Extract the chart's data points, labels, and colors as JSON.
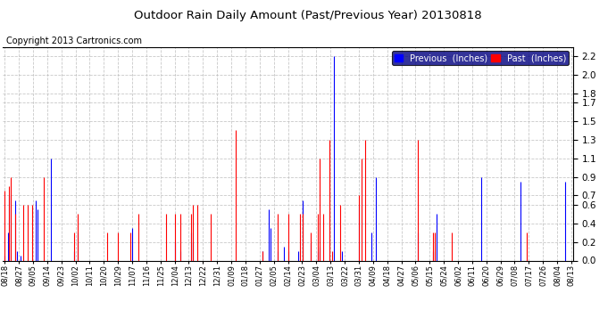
{
  "title": "Outdoor Rain Daily Amount (Past/Previous Year) 20130818",
  "copyright": "Copyright 2013 Cartronics.com",
  "legend_labels": [
    "Previous  (Inches)",
    "Past  (Inches)"
  ],
  "ylim": [
    0,
    2.3
  ],
  "yticks": [
    0.0,
    0.2,
    0.4,
    0.6,
    0.7,
    0.9,
    1.1,
    1.3,
    1.5,
    1.7,
    1.8,
    2.0,
    2.2
  ],
  "bg_color": "#ffffff",
  "grid_color": "#bbbbbb",
  "xtick_labels": [
    "08/18",
    "08/27",
    "09/05",
    "09/14",
    "09/23",
    "10/02",
    "10/11",
    "10/20",
    "10/29",
    "11/07",
    "11/16",
    "11/25",
    "12/04",
    "12/13",
    "12/22",
    "12/31",
    "01/09",
    "01/18",
    "01/27",
    "02/05",
    "02/14",
    "02/23",
    "03/04",
    "03/13",
    "03/22",
    "03/31",
    "04/09",
    "04/18",
    "04/27",
    "05/06",
    "05/15",
    "05/24",
    "06/02",
    "06/11",
    "06/20",
    "06/29",
    "07/08",
    "07/17",
    "07/26",
    "08/04",
    "08/13"
  ],
  "n_days": 366,
  "previous_data": [
    0.05,
    0.0,
    0.3,
    0.7,
    0.0,
    0.0,
    0.0,
    0.65,
    0.1,
    0.0,
    0.05,
    0.0,
    0.0,
    0.0,
    0.0,
    0.0,
    0.0,
    0.0,
    0.0,
    0.0,
    0.65,
    0.55,
    0.0,
    0.0,
    0.0,
    0.0,
    0.0,
    0.0,
    0.0,
    0.0,
    1.1,
    0.0,
    0.0,
    0.0,
    0.0,
    0.0,
    0.0,
    0.0,
    0.0,
    0.0,
    0.0,
    0.0,
    0.0,
    0.0,
    0.0,
    0.1,
    0.0,
    0.3,
    0.0,
    0.0,
    0.0,
    0.0,
    0.0,
    0.0,
    0.0,
    0.0,
    0.0,
    0.0,
    0.0,
    0.0,
    0.0,
    0.0,
    0.0,
    0.0,
    0.0,
    0.0,
    0.0,
    0.0,
    0.0,
    0.0,
    0.0,
    0.0,
    0.0,
    0.0,
    0.0,
    0.0,
    0.0,
    0.0,
    0.0,
    0.0,
    0.0,
    0.0,
    0.35,
    0.0,
    0.0,
    0.0,
    0.0,
    0.0,
    0.0,
    0.0,
    0.0,
    0.0,
    0.0,
    0.0,
    0.0,
    0.0,
    0.0,
    0.0,
    0.0,
    0.0,
    0.0,
    0.0,
    0.0,
    0.0,
    0.0,
    0.0,
    0.0,
    0.0,
    0.0,
    0.0,
    0.2,
    0.0,
    0.0,
    0.1,
    0.0,
    0.0,
    0.0,
    0.0,
    0.0,
    0.0,
    0.3,
    0.2,
    0.0,
    0.0,
    0.0,
    0.0,
    0.0,
    0.0,
    0.0,
    0.0,
    0.0,
    0.0,
    0.0,
    0.0,
    0.0,
    0.0,
    0.0,
    0.0,
    0.0,
    0.0,
    0.0,
    0.0,
    0.0,
    0.0,
    0.0,
    0.0,
    0.0,
    0.0,
    0.0,
    0.0,
    0.0,
    0.0,
    0.0,
    0.0,
    0.0,
    0.0,
    0.0,
    0.0,
    0.0,
    0.0,
    0.0,
    0.0,
    0.0,
    0.0,
    0.0,
    0.0,
    0.1,
    0.0,
    0.0,
    0.0,
    0.55,
    0.35,
    0.0,
    0.0,
    0.0,
    0.0,
    0.1,
    0.0,
    0.0,
    0.0,
    0.15,
    0.0,
    0.0,
    0.1,
    0.0,
    0.0,
    0.0,
    0.0,
    0.0,
    0.1,
    0.0,
    0.0,
    0.65,
    0.0,
    0.0,
    0.0,
    0.0,
    0.2,
    0.0,
    0.0,
    0.0,
    0.0,
    0.1,
    0.15,
    0.0,
    0.0,
    0.0,
    0.0,
    0.0,
    0.0,
    0.0,
    0.0,
    2.2,
    0.0,
    0.0,
    0.0,
    0.0,
    0.1,
    0.0,
    0.0,
    0.0,
    0.0,
    0.0,
    0.0,
    0.0,
    0.0,
    0.0,
    0.0,
    0.6,
    0.0,
    0.0,
    0.0,
    0.0,
    0.0,
    0.0,
    0.0,
    0.3,
    0.0,
    0.0,
    0.9,
    0.0,
    0.0,
    0.0,
    0.0,
    0.0,
    0.0,
    0.0,
    0.0,
    0.0,
    0.0,
    0.0,
    0.0,
    0.0,
    0.0,
    0.0,
    0.0,
    0.0,
    0.0,
    0.0,
    0.0,
    0.0,
    0.0,
    0.0,
    0.0,
    0.0,
    0.0,
    0.3,
    0.0,
    0.0,
    0.0,
    0.0,
    0.0,
    0.0,
    0.0,
    0.0,
    0.0,
    0.1,
    0.0,
    0.5,
    0.0,
    0.0,
    0.0,
    0.0,
    0.0,
    0.0,
    0.0,
    0.0,
    0.0,
    0.0,
    0.0,
    0.0,
    0.0,
    0.0,
    0.0,
    0.0,
    0.0,
    0.0,
    0.0,
    0.0,
    0.0,
    0.0,
    0.0,
    0.0,
    0.0,
    0.0,
    0.0,
    0.0,
    0.9,
    0.0,
    0.0,
    0.0,
    0.0,
    0.0,
    0.0,
    0.0,
    0.0,
    0.0,
    0.0,
    0.0,
    0.0,
    0.0,
    0.0,
    0.0,
    0.0,
    0.0,
    0.0,
    0.0,
    0.0,
    0.0,
    0.0,
    0.0,
    0.0,
    0.85,
    0.0,
    0.0,
    0.0,
    0.0,
    0.0,
    0.0,
    0.0,
    0.0,
    0.0,
    0.0,
    0.0,
    0.0,
    0.0,
    0.0,
    0.0,
    0.0,
    0.0,
    0.0,
    0.0,
    0.0,
    0.0,
    0.0,
    0.0,
    0.0,
    0.0,
    0.0,
    0.0,
    0.0,
    0.85
  ],
  "past_data": [
    0.75,
    0.0,
    0.0,
    0.8,
    0.9,
    0.0,
    0.0,
    0.5,
    0.0,
    0.0,
    0.0,
    0.0,
    0.6,
    0.0,
    0.0,
    0.6,
    0.0,
    0.0,
    0.6,
    0.0,
    0.0,
    0.0,
    0.0,
    0.0,
    0.0,
    0.9,
    0.0,
    0.0,
    0.0,
    0.0,
    0.0,
    0.0,
    0.0,
    0.0,
    0.0,
    0.0,
    0.0,
    0.0,
    0.0,
    0.0,
    0.0,
    0.0,
    0.0,
    0.0,
    0.0,
    0.3,
    0.0,
    0.5,
    0.0,
    0.0,
    0.0,
    0.0,
    0.0,
    0.0,
    0.0,
    0.0,
    0.0,
    0.0,
    0.0,
    0.0,
    0.0,
    0.0,
    0.0,
    0.0,
    0.0,
    0.0,
    0.3,
    0.0,
    0.0,
    0.0,
    0.0,
    0.0,
    0.0,
    0.3,
    0.0,
    0.0,
    0.0,
    0.0,
    0.0,
    0.0,
    0.0,
    0.3,
    0.0,
    0.0,
    0.0,
    0.0,
    0.5,
    0.0,
    0.0,
    0.0,
    0.0,
    0.0,
    0.0,
    0.0,
    0.0,
    0.0,
    0.0,
    0.0,
    0.0,
    0.0,
    0.0,
    0.0,
    0.0,
    0.0,
    0.5,
    0.0,
    0.0,
    0.0,
    0.0,
    0.0,
    0.5,
    0.0,
    0.0,
    0.5,
    0.0,
    0.0,
    0.0,
    0.0,
    0.0,
    0.0,
    0.5,
    0.6,
    0.0,
    0.0,
    0.6,
    0.0,
    0.0,
    0.0,
    0.0,
    0.0,
    0.0,
    0.0,
    0.0,
    0.5,
    0.0,
    0.0,
    0.0,
    0.0,
    0.0,
    0.0,
    0.0,
    0.0,
    0.0,
    0.0,
    0.0,
    0.0,
    0.0,
    0.0,
    0.0,
    1.4,
    0.0,
    0.0,
    0.0,
    0.0,
    0.0,
    0.0,
    0.0,
    0.0,
    0.0,
    0.0,
    0.0,
    0.0,
    0.0,
    0.0,
    0.0,
    0.0,
    0.1,
    0.0,
    0.0,
    0.0,
    0.0,
    0.0,
    0.0,
    0.0,
    0.0,
    0.0,
    0.5,
    0.0,
    0.0,
    0.0,
    0.0,
    0.0,
    0.0,
    0.5,
    0.0,
    0.0,
    0.0,
    0.0,
    0.0,
    0.0,
    0.5,
    0.0,
    0.5,
    0.0,
    0.0,
    0.0,
    0.0,
    0.3,
    0.0,
    0.0,
    0.0,
    0.0,
    0.5,
    1.1,
    0.0,
    0.5,
    0.0,
    0.0,
    0.0,
    1.3,
    0.0,
    0.1,
    0.0,
    0.0,
    0.0,
    0.0,
    0.6,
    0.0,
    0.0,
    0.0,
    0.0,
    0.0,
    0.0,
    0.0,
    0.0,
    0.0,
    0.0,
    0.0,
    0.7,
    0.0,
    1.1,
    0.0,
    1.3,
    0.0,
    0.0,
    0.0,
    0.0,
    0.0,
    0.0,
    0.0,
    0.0,
    0.0,
    0.0,
    0.0,
    0.0,
    0.0,
    0.0,
    0.0,
    0.0,
    0.0,
    0.0,
    0.0,
    0.0,
    0.0,
    0.0,
    0.0,
    0.0,
    0.0,
    0.0,
    0.0,
    0.0,
    0.0,
    0.0,
    0.0,
    0.0,
    0.0,
    1.3,
    0.0,
    0.0,
    0.0,
    0.0,
    0.0,
    0.0,
    0.0,
    0.0,
    0.0,
    0.3,
    0.3,
    0.0,
    0.0,
    0.0,
    0.0,
    0.0,
    0.0,
    0.0,
    0.0,
    0.0,
    0.0,
    0.3,
    0.0,
    0.0,
    0.0,
    0.0,
    0.0,
    0.0,
    0.0,
    0.0,
    0.0,
    0.0,
    0.0,
    0.0,
    0.0,
    0.0,
    0.0,
    0.0,
    0.0,
    0.0,
    0.0,
    0.0,
    0.0,
    0.0,
    0.0,
    0.0,
    0.0,
    0.0,
    0.0,
    0.0,
    0.0,
    0.0,
    0.0,
    0.0,
    0.0,
    0.0,
    0.0,
    0.0,
    0.0,
    0.0,
    0.0,
    0.0,
    0.0,
    0.0,
    0.0,
    0.0,
    0.0,
    0.0,
    0.0,
    0.3,
    0.0,
    0.0,
    0.0,
    0.0,
    0.0,
    0.0,
    0.0,
    0.0,
    0.0,
    0.0,
    0.0,
    0.0,
    0.0,
    0.0,
    0.0,
    0.0,
    0.0,
    0.0,
    0.0,
    0.0,
    0.0,
    0.0,
    0.0,
    0.0,
    0.0
  ]
}
